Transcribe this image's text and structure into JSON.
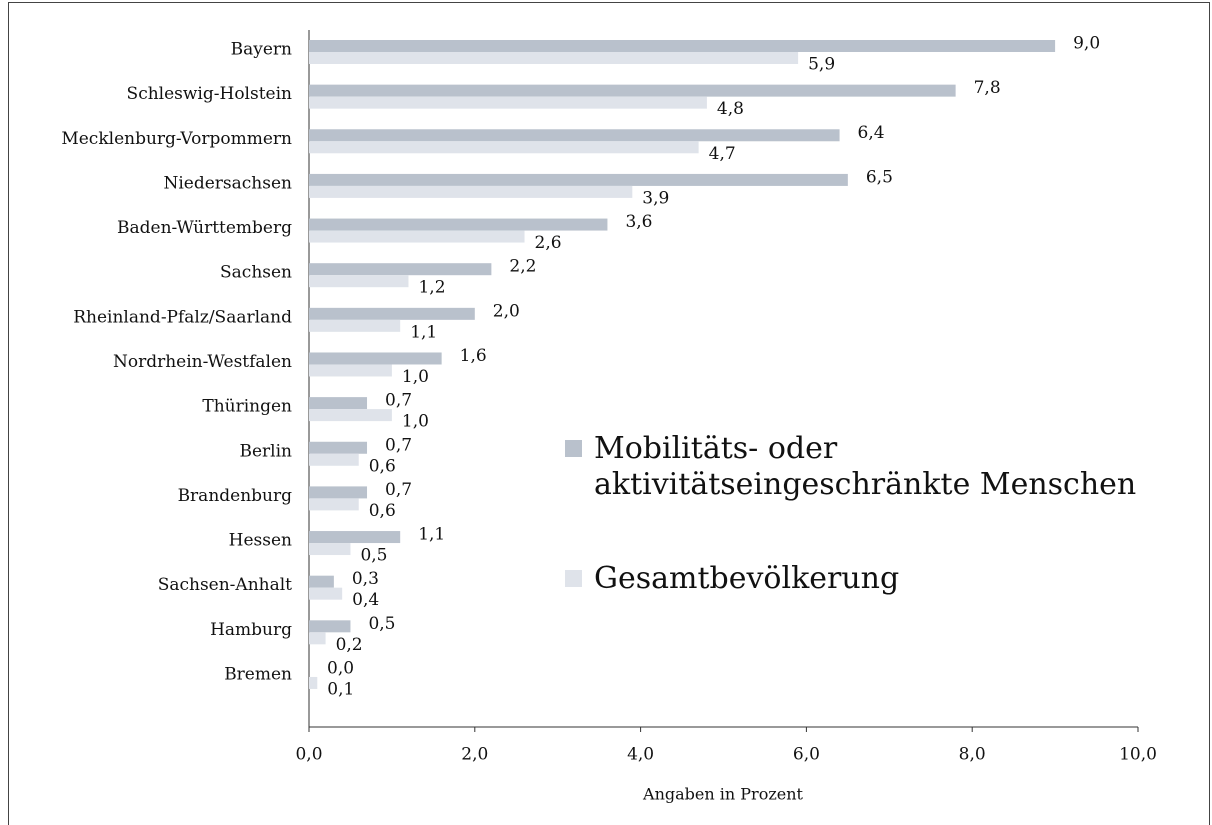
{
  "chart_data": {
    "type": "bar",
    "orientation": "horizontal",
    "categories": [
      "Bayern",
      "Schleswig-Holstein",
      "Mecklenburg-Vorpommern",
      "Niedersachsen",
      "Baden-Württemberg",
      "Sachsen",
      "Rheinland-Pfalz/Saarland",
      "Nordrhein-Westfalen",
      "Thüringen",
      "Berlin",
      "Brandenburg",
      "Hessen",
      "Sachsen-Anhalt",
      "Hamburg",
      "Bremen"
    ],
    "series": [
      {
        "name": "Mobilitäts- oder aktivitätseingeschränkte Menschen",
        "color": "#b9c1cc",
        "values": [
          9.0,
          7.8,
          6.4,
          6.5,
          3.6,
          2.2,
          2.0,
          1.6,
          0.7,
          0.7,
          0.7,
          1.1,
          0.3,
          0.5,
          0.0
        ],
        "value_labels": [
          "9,0",
          "7,8",
          "6,4",
          "6,5",
          "3,6",
          "2,2",
          "2,0",
          "1,6",
          "0,7",
          "0,7",
          "0,7",
          "1,1",
          "0,3",
          "0,5",
          "0,0"
        ]
      },
      {
        "name": "Gesamtbevölkerung",
        "color": "#dfe3ea",
        "values": [
          5.9,
          4.8,
          4.7,
          3.9,
          2.6,
          1.2,
          1.1,
          1.0,
          1.0,
          0.6,
          0.6,
          0.5,
          0.4,
          0.2,
          0.1
        ],
        "value_labels": [
          "5,9",
          "4,8",
          "4,7",
          "3,9",
          "2,6",
          "1,2",
          "1,1",
          "1,0",
          "1,0",
          "0,6",
          "0,6",
          "0,5",
          "0,4",
          "0,2",
          "0,1"
        ]
      }
    ],
    "xlabel": "Angaben in Prozent",
    "xlim": [
      0,
      10
    ],
    "xticks": [
      {
        "value": 0,
        "label": "0,0"
      },
      {
        "value": 2,
        "label": "2,0"
      },
      {
        "value": 4,
        "label": "4,0"
      },
      {
        "value": 6,
        "label": "6,0"
      },
      {
        "value": 8,
        "label": "8,0"
      },
      {
        "value": 10,
        "label": "10,0"
      }
    ],
    "legend": "right"
  }
}
